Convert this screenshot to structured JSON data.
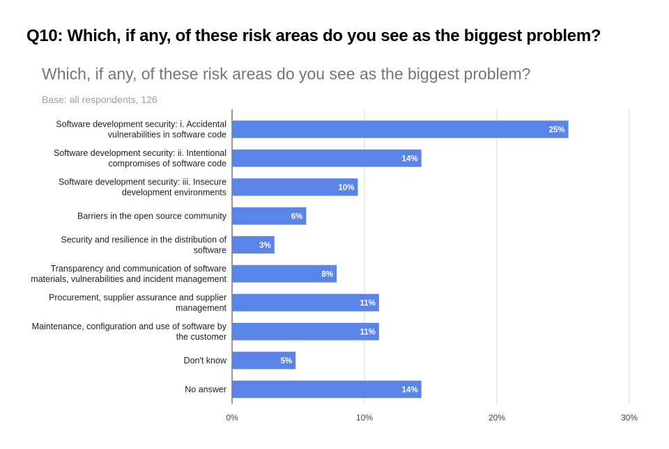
{
  "page_heading": "Q10: Which, if any, of these risk areas do you see as the biggest problem?",
  "chart_data": {
    "type": "bar",
    "orientation": "horizontal",
    "title": "Which, if any, of these risk areas do you see as the biggest problem?",
    "subtitle": "Base: all respondents, 126",
    "categories": [
      [
        "Software development security: i. Accidental",
        "vulnerabilities in software code"
      ],
      [
        "Software development security: ii. Intentional",
        "compromises of software code"
      ],
      [
        "Software development security: iii. Insecure",
        "development environments"
      ],
      [
        "Barriers in the open source community"
      ],
      [
        "Security and resilience in the distribution of",
        "software"
      ],
      [
        "Transparency and communication of software",
        "materials, vulnerabilities and incident management"
      ],
      [
        "Procurement, supplier assurance and supplier",
        "management"
      ],
      [
        "Maintenance, configuration and use of software  by",
        "the customer"
      ],
      [
        "Don't know"
      ],
      [
        "No answer"
      ]
    ],
    "values": [
      25.4,
      14.3,
      9.5,
      5.6,
      3.2,
      7.9,
      11.1,
      11.1,
      4.8,
      14.3
    ],
    "value_labels": [
      "25%",
      "14%",
      "10%",
      "6%",
      "3%",
      "8%",
      "11%",
      "11%",
      "5%",
      "14%"
    ],
    "xlim": [
      0,
      30
    ],
    "xticks": [
      0,
      10,
      20,
      30
    ],
    "xtick_labels": [
      "0%",
      "10%",
      "20%",
      "30%"
    ],
    "grid": true,
    "bar_color": "#5B84E8"
  }
}
